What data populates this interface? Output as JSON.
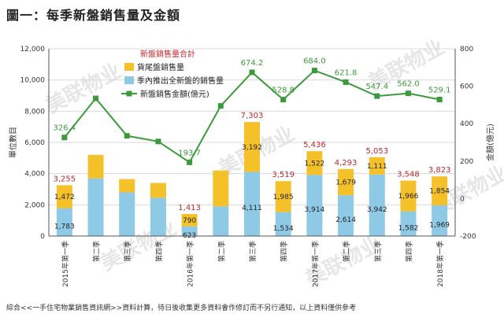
{
  "title": "圖一：每季新盤銷售量及金額",
  "footer": "綜合<<一手住宅物業銷售資訊網>>資料計算，待日後收集更多資料會作修訂而不另行通知，以上資料僅供參考",
  "watermark": "美联物业",
  "colors": {
    "inventory": "#f5c12a",
    "new_sales": "#8ecae6",
    "amount_line": "#3c9a3c",
    "total_label": "#c0282d",
    "amount_label": "#3c9a3c",
    "grid": "#d9d9d9"
  },
  "chart_data": {
    "type": "bar",
    "stacked": true,
    "categories": [
      "2015年第一季",
      "第二季",
      "第三季",
      "第四季",
      "2016年第一季",
      "第二季",
      "第三季",
      "第四季",
      "2017年第一季",
      "第二季",
      "第三季",
      "第四季",
      "2018年第一季"
    ],
    "ylabel": "單位數目",
    "y2label": "金額(億元)",
    "ylim": [
      0,
      12000
    ],
    "y2lim": [
      -200,
      800
    ],
    "yticks": [
      0,
      2000,
      4000,
      6000,
      8000,
      10000,
      12000
    ],
    "yticks_text": [
      "0",
      "2,000",
      "4,000",
      "6,000",
      "8,000",
      "10,000",
      "12,000"
    ],
    "y2ticks": [
      -200,
      0,
      200,
      400,
      600,
      800
    ],
    "grid": true,
    "legend": {
      "title": "新盤銷售量合計",
      "position": "top-center",
      "entries": [
        "貨尾盤銷售量",
        "季內推出全新盤的銷售量",
        "新盤銷售金額(億元)"
      ]
    },
    "series": [
      {
        "name": "季內推出全新盤的銷售量",
        "values": [
          1783,
          3700,
          2800,
          2450,
          623,
          1900,
          4111,
          1534,
          3914,
          2614,
          3942,
          1582,
          1969
        ],
        "labels": [
          "1,783",
          "",
          "",
          "",
          "623",
          "",
          "4,111",
          "1,534",
          "3,914",
          "2,614",
          "3,942",
          "1,582",
          "1,969"
        ]
      },
      {
        "name": "貨尾盤銷售量",
        "values": [
          1472,
          1500,
          850,
          950,
          790,
          2300,
          3192,
          1985,
          1522,
          1679,
          1111,
          1966,
          1854
        ],
        "labels": [
          "1,472",
          "",
          "",
          "",
          "790",
          "",
          "3,192",
          "1,985",
          "1,522",
          "1,679",
          "1,111",
          "1,966",
          "1,854"
        ]
      },
      {
        "name": "新盤銷售金額(億元)",
        "type": "line",
        "axis": "right",
        "values": [
          326.4,
          535,
          335,
          305,
          193.7,
          495,
          674.2,
          528.8,
          684.0,
          621.8,
          547.4,
          562.0,
          529.1
        ],
        "labels": [
          "326.4",
          "",
          "",
          "",
          "193.7",
          "",
          "674.2",
          "528.8",
          "684.0",
          "621.8",
          "547.4",
          "562.0",
          "529.1"
        ]
      }
    ],
    "totals": {
      "name": "新盤銷售量合計",
      "labels": [
        "3,255",
        "",
        "",
        "",
        "1,413",
        "",
        "7,303",
        "3,519",
        "5,436",
        "4,293",
        "5,053",
        "3,548",
        "3,823"
      ]
    }
  }
}
